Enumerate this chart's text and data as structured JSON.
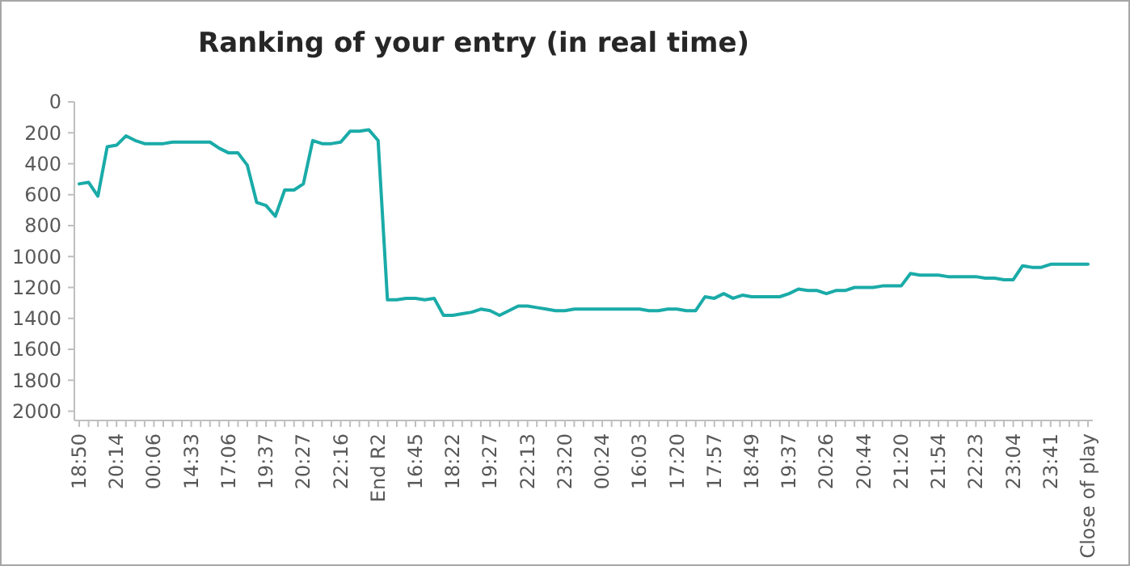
{
  "chart_data": {
    "type": "line",
    "title": "Ranking of your entry (in real time)",
    "categories": [
      "18:50",
      null,
      null,
      null,
      "20:14",
      null,
      null,
      null,
      "00:06",
      null,
      null,
      null,
      "14:33",
      null,
      null,
      null,
      "17:06",
      null,
      null,
      null,
      "19:37",
      null,
      null,
      null,
      "20:27",
      null,
      null,
      null,
      "22:16",
      null,
      null,
      null,
      "End R2",
      null,
      null,
      null,
      "16:45",
      null,
      null,
      null,
      "18:22",
      null,
      null,
      null,
      "19:27",
      null,
      null,
      null,
      "22:13",
      null,
      null,
      null,
      "23:20",
      null,
      null,
      null,
      "00:24",
      null,
      null,
      null,
      "16:03",
      null,
      null,
      null,
      "17:20",
      null,
      null,
      null,
      "17:57",
      null,
      null,
      null,
      "18:49",
      null,
      null,
      null,
      "19:37",
      null,
      null,
      null,
      "20:26",
      null,
      null,
      null,
      "20:44",
      null,
      null,
      null,
      "21:20",
      null,
      null,
      null,
      "21:54",
      null,
      null,
      null,
      "22:23",
      null,
      null,
      null,
      "23:04",
      null,
      null,
      null,
      "23:41",
      null,
      null,
      null,
      "Close of play"
    ],
    "series": [
      {
        "color": "#1aaba8",
        "values": [
          530,
          520,
          610,
          290,
          280,
          220,
          250,
          270,
          270,
          270,
          260,
          260,
          260,
          260,
          260,
          300,
          330,
          330,
          410,
          650,
          670,
          740,
          570,
          570,
          530,
          250,
          270,
          270,
          260,
          190,
          190,
          180,
          250,
          1280,
          1280,
          1270,
          1270,
          1280,
          1270,
          1380,
          1380,
          1370,
          1360,
          1340,
          1350,
          1380,
          1350,
          1320,
          1320,
          1330,
          1340,
          1350,
          1350,
          1340,
          1340,
          1340,
          1340,
          1340,
          1340,
          1340,
          1340,
          1350,
          1350,
          1340,
          1340,
          1350,
          1350,
          1260,
          1270,
          1240,
          1270,
          1250,
          1260,
          1260,
          1260,
          1260,
          1240,
          1210,
          1220,
          1220,
          1240,
          1220,
          1220,
          1200,
          1200,
          1200,
          1190,
          1190,
          1190,
          1110,
          1120,
          1120,
          1120,
          1130,
          1130,
          1130,
          1130,
          1140,
          1140,
          1150,
          1150,
          1060,
          1070,
          1070,
          1050,
          1050,
          1050,
          1050,
          1050
        ]
      }
    ],
    "ylim": [
      2060,
      0
    ],
    "yticks": [
      0,
      200,
      400,
      600,
      800,
      1000,
      1200,
      1400,
      1600,
      1800,
      2000
    ],
    "grid": false,
    "marker": "none",
    "line_style": "solid"
  }
}
